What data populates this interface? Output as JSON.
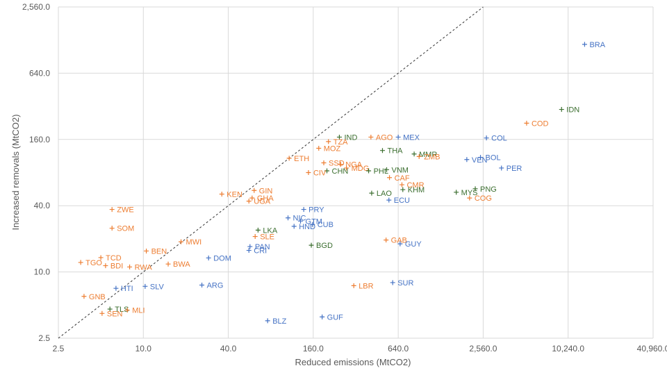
{
  "chart_data": {
    "type": "scatter",
    "title": "",
    "xlabel": "Reduced emissions (MtCO2)",
    "ylabel": "Increased removals (MtCO2)",
    "x_scale": "log",
    "y_scale": "log",
    "xlim": [
      2.5,
      40960
    ],
    "ylim": [
      2.5,
      2560
    ],
    "x_ticks": [
      "2.5",
      "10.0",
      "40.0",
      "160.0",
      "640.0",
      "2,560.0",
      "10,240.0",
      "40,960.0"
    ],
    "y_ticks": [
      "2.5",
      "10.0",
      "40.0",
      "160.0",
      "640.0",
      "2,560.0"
    ],
    "x_tick_values": [
      2.5,
      10,
      40,
      160,
      640,
      2560,
      10240,
      40960
    ],
    "y_tick_values": [
      2.5,
      10,
      40,
      160,
      640,
      2560
    ],
    "grid": true,
    "reference_line": "y = x",
    "colors": {
      "orange": "#ed7d31",
      "blue": "#4472c4",
      "green": "#3b6e2f",
      "grid": "#d9d9d9",
      "text": "#595959"
    },
    "points": [
      {
        "label": "BRA",
        "x": 13400,
        "y": 1170,
        "color": "blue"
      },
      {
        "label": "IDN",
        "x": 9200,
        "y": 300,
        "color": "green"
      },
      {
        "label": "COD",
        "x": 5200,
        "y": 225,
        "color": "orange"
      },
      {
        "label": "COL",
        "x": 2700,
        "y": 165,
        "color": "blue"
      },
      {
        "label": "MEX",
        "x": 640,
        "y": 168,
        "color": "blue"
      },
      {
        "label": "AGO",
        "x": 410,
        "y": 168,
        "color": "orange"
      },
      {
        "label": "IND",
        "x": 245,
        "y": 168,
        "color": "green"
      },
      {
        "label": "TZA",
        "x": 205,
        "y": 153,
        "color": "orange"
      },
      {
        "label": "MOZ",
        "x": 175,
        "y": 133,
        "color": "orange"
      },
      {
        "label": "THA",
        "x": 495,
        "y": 127,
        "color": "green"
      },
      {
        "label": "MMR",
        "x": 830,
        "y": 118,
        "color": "green"
      },
      {
        "label": "ZMB",
        "x": 900,
        "y": 112,
        "color": "orange"
      },
      {
        "label": "BOL",
        "x": 2450,
        "y": 110,
        "color": "blue"
      },
      {
        "label": "VEN",
        "x": 1960,
        "y": 105,
        "color": "blue"
      },
      {
        "label": "PER",
        "x": 3450,
        "y": 88,
        "color": "blue"
      },
      {
        "label": "ETH",
        "x": 108,
        "y": 108,
        "color": "orange"
      },
      {
        "label": "SSD",
        "x": 190,
        "y": 98,
        "color": "orange"
      },
      {
        "label": "NGA",
        "x": 250,
        "y": 95,
        "color": "orange"
      },
      {
        "label": "MDG",
        "x": 275,
        "y": 88,
        "color": "orange"
      },
      {
        "label": "PHL",
        "x": 395,
        "y": 83,
        "color": "green"
      },
      {
        "label": "VNM",
        "x": 530,
        "y": 85,
        "color": "green"
      },
      {
        "label": "CHN",
        "x": 200,
        "y": 83,
        "color": "green"
      },
      {
        "label": "CIV",
        "x": 148,
        "y": 80,
        "color": "orange"
      },
      {
        "label": "CAF",
        "x": 555,
        "y": 72,
        "color": "orange"
      },
      {
        "label": "CMR",
        "x": 680,
        "y": 62,
        "color": "orange"
      },
      {
        "label": "KHM",
        "x": 690,
        "y": 56,
        "color": "green"
      },
      {
        "label": "PNG",
        "x": 2250,
        "y": 57,
        "color": "green"
      },
      {
        "label": "MYS",
        "x": 1650,
        "y": 53,
        "color": "green"
      },
      {
        "label": "COG",
        "x": 2050,
        "y": 47,
        "color": "orange"
      },
      {
        "label": "LAO",
        "x": 415,
        "y": 52,
        "color": "green"
      },
      {
        "label": "ECU",
        "x": 550,
        "y": 45,
        "color": "blue"
      },
      {
        "label": "KEN",
        "x": 36,
        "y": 51,
        "color": "orange"
      },
      {
        "label": "GIN",
        "x": 61,
        "y": 55,
        "color": "orange"
      },
      {
        "label": "GHA",
        "x": 59,
        "y": 47,
        "color": "orange"
      },
      {
        "label": "UGA",
        "x": 56,
        "y": 44,
        "color": "orange"
      },
      {
        "label": "PRY",
        "x": 137,
        "y": 37,
        "color": "blue"
      },
      {
        "label": "ZWE",
        "x": 6,
        "y": 37,
        "color": "orange"
      },
      {
        "label": "NIC",
        "x": 106,
        "y": 31,
        "color": "blue"
      },
      {
        "label": "GTM",
        "x": 130,
        "y": 29,
        "color": "blue"
      },
      {
        "label": "CUB",
        "x": 158,
        "y": 27,
        "color": "blue"
      },
      {
        "label": "HND",
        "x": 117,
        "y": 26,
        "color": "blue"
      },
      {
        "label": "SOM",
        "x": 6,
        "y": 25,
        "color": "orange"
      },
      {
        "label": "LKA",
        "x": 65,
        "y": 24,
        "color": "green"
      },
      {
        "label": "SLE",
        "x": 62,
        "y": 21,
        "color": "orange"
      },
      {
        "label": "MWI",
        "x": 18.5,
        "y": 18.8,
        "color": "orange"
      },
      {
        "label": "BGD",
        "x": 155,
        "y": 17.5,
        "color": "green"
      },
      {
        "label": "GAB",
        "x": 525,
        "y": 19.5,
        "color": "orange"
      },
      {
        "label": "GUY",
        "x": 660,
        "y": 18,
        "color": "blue"
      },
      {
        "label": "PAN",
        "x": 57,
        "y": 17,
        "color": "blue"
      },
      {
        "label": "CRI",
        "x": 56,
        "y": 15.7,
        "color": "blue"
      },
      {
        "label": "BEN",
        "x": 10.5,
        "y": 15.5,
        "color": "orange"
      },
      {
        "label": "TCD",
        "x": 5,
        "y": 13.5,
        "color": "orange"
      },
      {
        "label": "TGO",
        "x": 3.6,
        "y": 12.2,
        "color": "orange"
      },
      {
        "label": "BDI",
        "x": 5.4,
        "y": 11.4,
        "color": "orange"
      },
      {
        "label": "RWA",
        "x": 8,
        "y": 11.1,
        "color": "orange"
      },
      {
        "label": "BWA",
        "x": 15,
        "y": 11.8,
        "color": "orange"
      },
      {
        "label": "DOM",
        "x": 29,
        "y": 13.4,
        "color": "blue"
      },
      {
        "label": "SUR",
        "x": 585,
        "y": 8,
        "color": "blue"
      },
      {
        "label": "LBR",
        "x": 310,
        "y": 7.5,
        "color": "orange"
      },
      {
        "label": "ARG",
        "x": 26,
        "y": 7.6,
        "color": "blue"
      },
      {
        "label": "SLV",
        "x": 10.3,
        "y": 7.4,
        "color": "blue"
      },
      {
        "label": "HTI",
        "x": 6.4,
        "y": 7.1,
        "color": "blue"
      },
      {
        "label": "GNB",
        "x": 3.8,
        "y": 6,
        "color": "orange"
      },
      {
        "label": "TLS",
        "x": 5.8,
        "y": 4.6,
        "color": "green"
      },
      {
        "label": "MLI",
        "x": 7.7,
        "y": 4.5,
        "color": "orange"
      },
      {
        "label": "SEN",
        "x": 5.1,
        "y": 4.2,
        "color": "orange"
      },
      {
        "label": "BLZ",
        "x": 76,
        "y": 3.6,
        "color": "blue"
      },
      {
        "label": "GUF",
        "x": 185,
        "y": 3.9,
        "color": "blue"
      }
    ]
  }
}
